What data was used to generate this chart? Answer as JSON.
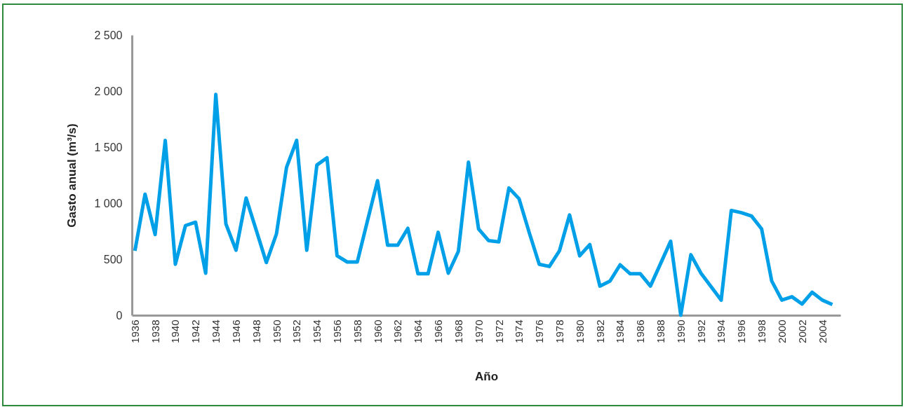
{
  "chart_data": {
    "type": "line",
    "xlabel": "Año",
    "ylabel": "Gasto anual (m³/s)",
    "categories": [
      "1936",
      null,
      "1938",
      null,
      "1940",
      null,
      "1942",
      null,
      "1944",
      null,
      "1946",
      null,
      "1948",
      null,
      "1950",
      null,
      "1952",
      null,
      "1954",
      null,
      "1956",
      null,
      "1958",
      null,
      "1960",
      null,
      "1962",
      null,
      "1964",
      null,
      "1966",
      null,
      "1968",
      null,
      "1970",
      null,
      "1972",
      null,
      "1974",
      null,
      "1976",
      null,
      "1978",
      null,
      "1980",
      null,
      "1982",
      null,
      "1984",
      null,
      "1986",
      null,
      "1988",
      null,
      "1990",
      null,
      "1992",
      null,
      "1994",
      null,
      "1996",
      null,
      "1998",
      null,
      "2000",
      null,
      "2002",
      null,
      "2004",
      null
    ],
    "series": [
      {
        "color": "#00a0e9",
        "values": [
          575,
          1080,
          720,
          1560,
          455,
          800,
          830,
          375,
          1970,
          815,
          580,
          1045,
          760,
          470,
          725,
          1320,
          1560,
          580,
          1340,
          1405,
          530,
          475,
          475,
          840,
          1200,
          625,
          625,
          775,
          370,
          370,
          740,
          375,
          570,
          1365,
          770,
          665,
          655,
          1135,
          1040,
          740,
          455,
          435,
          575,
          895,
          530,
          630,
          260,
          305,
          450,
          370,
          370,
          260,
          460,
          660,
          0,
          540,
          375,
          255,
          135,
          935,
          915,
          885,
          770,
          305,
          135,
          165,
          100,
          205,
          135,
          95
        ]
      }
    ],
    "ylim": [
      0,
      2500
    ],
    "yticks": [
      0,
      500,
      {
        "value": 1000,
        "label": "1 000"
      },
      {
        "value": 1500,
        "label": "1 500"
      },
      {
        "value": 2000,
        "label": "2 000"
      },
      {
        "value": 2500,
        "label": "2 500"
      }
    ],
    "grid": false,
    "marker": "none",
    "line_style": "solid"
  }
}
